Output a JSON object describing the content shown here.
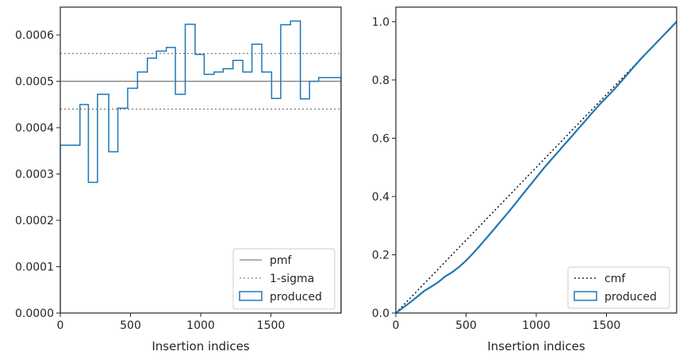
{
  "chart_data": [
    {
      "type": "histogram-step",
      "title": "",
      "xlabel": "Insertion indices",
      "ylabel": "",
      "xlim": [
        0,
        2000
      ],
      "ylim": [
        0,
        0.00066
      ],
      "xticks": [
        0,
        500,
        1000,
        1500
      ],
      "xtick_labels": [
        "0",
        "500",
        "1000",
        "1500"
      ],
      "yticks": [
        0,
        0.0001,
        0.0002,
        0.0003,
        0.0004,
        0.0005,
        0.0006
      ],
      "ytick_labels": [
        "0.0000",
        "0.0001",
        "0.0002",
        "0.0003",
        "0.0004",
        "0.0005",
        "0.0006"
      ],
      "grid": false,
      "legend_position": "lower-right",
      "series": [
        {
          "name": "pmf",
          "kind": "hline",
          "y": 0.0005,
          "style": "solid",
          "color": "#808080"
        },
        {
          "name": "1-sigma",
          "kind": "hlines",
          "y": [
            0.00056,
            0.00044
          ],
          "style": "dotted",
          "color": "#808080"
        },
        {
          "name": "produced",
          "kind": "step",
          "color": "#1f77b4",
          "bin_edges": [
            0,
            140,
            200,
            265,
            345,
            410,
            480,
            550,
            620,
            685,
            755,
            820,
            890,
            960,
            1025,
            1095,
            1160,
            1230,
            1300,
            1365,
            1435,
            1505,
            1570,
            1640,
            1710,
            1775,
            1840,
            1910,
            2000
          ],
          "values": [
            0.000362,
            0.00045,
            0.000282,
            0.000472,
            0.000348,
            0.000442,
            0.000485,
            0.00052,
            0.00055,
            0.000565,
            0.000573,
            0.000472,
            0.000623,
            0.000558,
            0.000515,
            0.00052,
            0.000527,
            0.000545,
            0.00052,
            0.00058,
            0.00052,
            0.000463,
            0.000622,
            0.00063,
            0.000462,
            0.0005,
            0.000508,
            0.000508
          ]
        }
      ]
    },
    {
      "type": "line",
      "title": "",
      "xlabel": "Insertion indices",
      "ylabel": "",
      "xlim": [
        0,
        2000
      ],
      "ylim": [
        0,
        1.05
      ],
      "xticks": [
        0,
        500,
        1000,
        1500
      ],
      "xtick_labels": [
        "0",
        "500",
        "1000",
        "1500"
      ],
      "yticks": [
        0,
        0.2,
        0.4,
        0.6,
        0.8,
        1.0
      ],
      "ytick_labels": [
        "0.0",
        "0.2",
        "0.4",
        "0.6",
        "0.8",
        "1.0"
      ],
      "grid": false,
      "legend_position": "lower-right",
      "series": [
        {
          "name": "cmf",
          "style": "dotted",
          "color": "#000000",
          "x": [
            0,
            2000
          ],
          "y": [
            0,
            1.0
          ]
        },
        {
          "name": "produced",
          "style": "solid",
          "color": "#1f77b4",
          "x": [
            0,
            50,
            100,
            150,
            200,
            250,
            300,
            350,
            400,
            450,
            500,
            550,
            600,
            650,
            700,
            750,
            800,
            850,
            900,
            950,
            1000,
            1050,
            1100,
            1150,
            1200,
            1250,
            1300,
            1350,
            1400,
            1450,
            1500,
            1550,
            1600,
            1650,
            1700,
            1750,
            1800,
            1850,
            1900,
            1950,
            2000
          ],
          "y": [
            0,
            0.018,
            0.036,
            0.055,
            0.075,
            0.09,
            0.105,
            0.125,
            0.14,
            0.158,
            0.18,
            0.205,
            0.232,
            0.26,
            0.288,
            0.317,
            0.345,
            0.375,
            0.405,
            0.435,
            0.465,
            0.495,
            0.523,
            0.55,
            0.578,
            0.605,
            0.633,
            0.66,
            0.688,
            0.715,
            0.74,
            0.765,
            0.792,
            0.82,
            0.848,
            0.875,
            0.9,
            0.925,
            0.95,
            0.975,
            1.0
          ]
        }
      ]
    }
  ]
}
